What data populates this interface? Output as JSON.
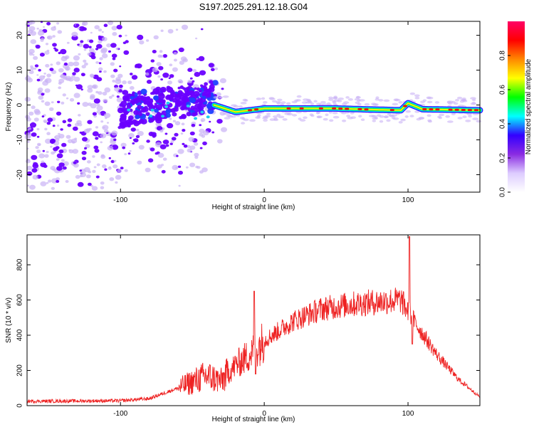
{
  "title": "S197.2025.291.12.18.G04",
  "colors": {
    "snr_line": "#ee2222",
    "spectrum_dark": "#6a00ff",
    "spectrum_light": "#c9b2f5"
  },
  "chart_data": [
    {
      "type": "heatmap",
      "name": "spectrogram",
      "xlabel": "Height of straight line (km)",
      "ylabel": "Frequency (Hz)",
      "xlim": [
        -165,
        150
      ],
      "ylim": [
        -25,
        24
      ],
      "xticks": [
        -100,
        0,
        100
      ],
      "yticks": [
        -20,
        -10,
        0,
        10,
        20
      ],
      "colorbar": {
        "label": "Normalized spectral amplitude",
        "range": [
          0,
          1
        ],
        "ticks": [
          0.0,
          0.2,
          0.4,
          0.6,
          0.8
        ],
        "tick_labels": [
          "0.0",
          "0.2",
          "0.4",
          "0.6",
          "0.8"
        ],
        "colormap": [
          "#ffffff",
          "#ddccff",
          "#8a2be2",
          "#3300ff",
          "#00ffff",
          "#00ff00",
          "#ffff00",
          "#ff8800",
          "#ff0000",
          "#ff0066"
        ]
      },
      "signal_line": [
        {
          "x": -35,
          "y": 0.0
        },
        {
          "x": -20,
          "y": -2.0
        },
        {
          "x": -10,
          "y": -1.5
        },
        {
          "x": 0,
          "y": -1.0
        },
        {
          "x": 50,
          "y": -1.0
        },
        {
          "x": 75,
          "y": -1.3
        },
        {
          "x": 95,
          "y": -1.5
        },
        {
          "x": 100,
          "y": 0.5
        },
        {
          "x": 110,
          "y": -1.2
        },
        {
          "x": 150,
          "y": -1.5
        }
      ]
    },
    {
      "type": "line",
      "name": "snr",
      "xlabel": "Height of straight line (km)",
      "ylabel": "SNR (10 * v/v)",
      "xlim": [
        -165,
        150
      ],
      "ylim": [
        0,
        970
      ],
      "xticks": [
        -100,
        0,
        100
      ],
      "yticks": [
        0,
        200,
        400,
        600,
        800
      ],
      "envelope": [
        {
          "x": -165,
          "y": 25
        },
        {
          "x": -100,
          "y": 28
        },
        {
          "x": -80,
          "y": 40
        },
        {
          "x": -60,
          "y": 100
        },
        {
          "x": -40,
          "y": 170
        },
        {
          "x": -30,
          "y": 140
        },
        {
          "x": -20,
          "y": 230
        },
        {
          "x": -10,
          "y": 290
        },
        {
          "x": 0,
          "y": 370
        },
        {
          "x": 20,
          "y": 480
        },
        {
          "x": 40,
          "y": 550
        },
        {
          "x": 60,
          "y": 575
        },
        {
          "x": 80,
          "y": 590
        },
        {
          "x": 95,
          "y": 600
        },
        {
          "x": 105,
          "y": 470
        },
        {
          "x": 120,
          "y": 290
        },
        {
          "x": 135,
          "y": 150
        },
        {
          "x": 150,
          "y": 50
        }
      ],
      "spikes": [
        {
          "x": -7,
          "y": 650
        },
        {
          "x": -6,
          "y": 180
        },
        {
          "x": 101,
          "y": 960
        },
        {
          "x": 103,
          "y": 350
        }
      ]
    }
  ]
}
